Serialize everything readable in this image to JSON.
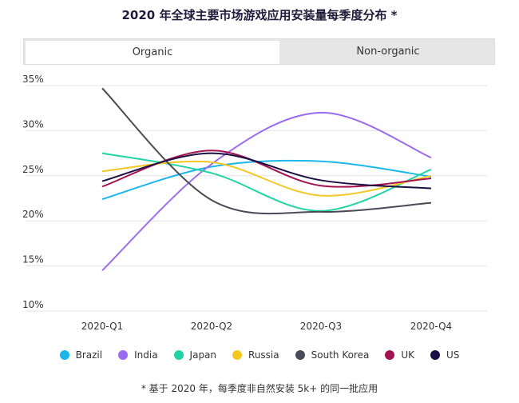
{
  "title": "2020 年全球主要市场游戏应用安装量每季度分布 *",
  "tabs": [
    {
      "label": "Organic",
      "active": true
    },
    {
      "label": "Non-organic",
      "active": false
    }
  ],
  "footnote": "* 基于 2020 年，每季度非自然安装 5k+ 的同一批应用",
  "chart_data": {
    "type": "line",
    "x": [
      "2020-Q1",
      "2020-Q2",
      "2020-Q3",
      "2020-Q4"
    ],
    "ylim": [
      10,
      35
    ],
    "yticks": [
      "10%",
      "15%",
      "20%",
      "25%",
      "30%",
      "35%"
    ],
    "grid": true,
    "legend_position": "bottom",
    "series": [
      {
        "name": "Brazil",
        "color": "#1ab7ea",
        "values": [
          22.4,
          26.0,
          26.6,
          24.9
        ]
      },
      {
        "name": "India",
        "color": "#9b6cf0",
        "values": [
          14.5,
          26.3,
          32.0,
          27.0
        ]
      },
      {
        "name": "Japan",
        "color": "#22d3a5",
        "values": [
          27.5,
          25.3,
          21.1,
          25.7
        ]
      },
      {
        "name": "Russia",
        "color": "#f5c722",
        "values": [
          25.5,
          26.5,
          22.8,
          25.0
        ]
      },
      {
        "name": "South Korea",
        "color": "#4a4a56",
        "values": [
          34.7,
          22.3,
          21.0,
          22.0
        ]
      },
      {
        "name": "UK",
        "color": "#a3134f",
        "values": [
          23.8,
          27.8,
          23.9,
          24.7
        ]
      },
      {
        "name": "US",
        "color": "#1c0f45",
        "values": [
          24.4,
          27.5,
          24.5,
          23.6
        ]
      }
    ]
  }
}
